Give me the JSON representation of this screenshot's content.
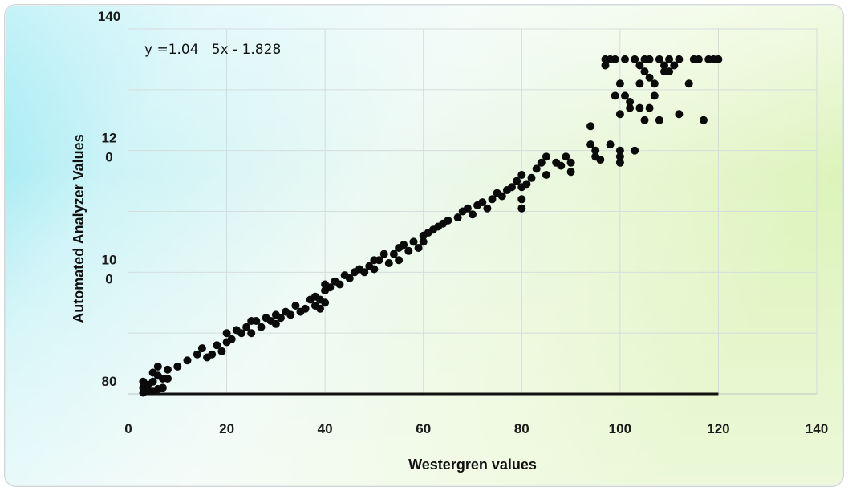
{
  "chart_data": {
    "type": "scatter",
    "xlabel": "Westergren values",
    "ylabel": "Automated Analyzer Values",
    "annotation": "y =1.04   5x - 1.828",
    "x_tick_labels": [
      "0",
      "20",
      "40",
      "60",
      "80",
      "100",
      "120",
      "140"
    ],
    "y_tick_labels": [
      {
        "value": 140,
        "lines": [
          "140"
        ]
      },
      {
        "value": 120,
        "lines": [
          "12",
          "0"
        ]
      },
      {
        "value": 100,
        "lines": [
          "10",
          "0"
        ]
      },
      {
        "value": 80,
        "lines": [
          "80"
        ]
      }
    ],
    "xlim": [
      0,
      140
    ],
    "ylim": [
      80,
      140
    ],
    "grid": true,
    "series": [
      {
        "points": [
          [
            3,
            81
          ],
          [
            4,
            81.5
          ],
          [
            5,
            80.5
          ],
          [
            3,
            82
          ],
          [
            6,
            83
          ],
          [
            5,
            82
          ],
          [
            7,
            82.5
          ],
          [
            4,
            80.5
          ],
          [
            8,
            84
          ],
          [
            6,
            84.5
          ],
          [
            7,
            81
          ],
          [
            3,
            80.2
          ],
          [
            5,
            83.5
          ],
          [
            8,
            82.5
          ],
          [
            6,
            80.8
          ],
          [
            10,
            84.5
          ],
          [
            12,
            85.5
          ],
          [
            14,
            86.5
          ],
          [
            15,
            87.5
          ],
          [
            16,
            86
          ],
          [
            17,
            86.5
          ],
          [
            18,
            88
          ],
          [
            19,
            87
          ],
          [
            20,
            88.5
          ],
          [
            20,
            90
          ],
          [
            21,
            89
          ],
          [
            22,
            90.5
          ],
          [
            23,
            90
          ],
          [
            24,
            91
          ],
          [
            25,
            90
          ],
          [
            25,
            92
          ],
          [
            26,
            92
          ],
          [
            27,
            91
          ],
          [
            28,
            92.5
          ],
          [
            29,
            92
          ],
          [
            30,
            93
          ],
          [
            30,
            91.5
          ],
          [
            31,
            92.5
          ],
          [
            32,
            93.5
          ],
          [
            33,
            93
          ],
          [
            34,
            94.5
          ],
          [
            35,
            93.5
          ],
          [
            36,
            94
          ],
          [
            37,
            95.5
          ],
          [
            38,
            96
          ],
          [
            38,
            94.5
          ],
          [
            39,
            95.5
          ],
          [
            39,
            94
          ],
          [
            40,
            95
          ],
          [
            40,
            97
          ],
          [
            40,
            98
          ],
          [
            41,
            97.5
          ],
          [
            42,
            98.5
          ],
          [
            43,
            98
          ],
          [
            44,
            99.5
          ],
          [
            45,
            99
          ],
          [
            46,
            100
          ],
          [
            47,
            100.5
          ],
          [
            48,
            100
          ],
          [
            49,
            101
          ],
          [
            50,
            102
          ],
          [
            50,
            100.5
          ],
          [
            51,
            102
          ],
          [
            52,
            103
          ],
          [
            53,
            101.5
          ],
          [
            54,
            103
          ],
          [
            55,
            104
          ],
          [
            55,
            102
          ],
          [
            56,
            104.5
          ],
          [
            57,
            103.5
          ],
          [
            58,
            105
          ],
          [
            59,
            104
          ],
          [
            60,
            106
          ],
          [
            60,
            105
          ],
          [
            61,
            106.5
          ],
          [
            62,
            107
          ],
          [
            63,
            107.5
          ],
          [
            64,
            108
          ],
          [
            65,
            108.5
          ],
          [
            67,
            109
          ],
          [
            68,
            110
          ],
          [
            69,
            110.5
          ],
          [
            70,
            109.5
          ],
          [
            71,
            111
          ],
          [
            72,
            111.5
          ],
          [
            73,
            110.5
          ],
          [
            74,
            112
          ],
          [
            75,
            113
          ],
          [
            76,
            112.5
          ],
          [
            77,
            113.5
          ],
          [
            78,
            114
          ],
          [
            79,
            115
          ],
          [
            80,
            114
          ],
          [
            80,
            112
          ],
          [
            80,
            110.5
          ],
          [
            80,
            116
          ],
          [
            81,
            114.5
          ],
          [
            82,
            115.5
          ],
          [
            83,
            117
          ],
          [
            84,
            118
          ],
          [
            85,
            119
          ],
          [
            85,
            116
          ],
          [
            87,
            118
          ],
          [
            88,
            117.5
          ],
          [
            89,
            119
          ],
          [
            90,
            116.5
          ],
          [
            90,
            118
          ],
          [
            94,
            121
          ],
          [
            94,
            124
          ],
          [
            95,
            120
          ],
          [
            95,
            119
          ],
          [
            96,
            118.5
          ],
          [
            97,
            134
          ],
          [
            98,
            135
          ],
          [
            98,
            121
          ],
          [
            99,
            129
          ],
          [
            100,
            120
          ],
          [
            100,
            118
          ],
          [
            100,
            119
          ],
          [
            100,
            126
          ],
          [
            100,
            131
          ],
          [
            101,
            129
          ],
          [
            102,
            128
          ],
          [
            102,
            127
          ],
          [
            103,
            120
          ],
          [
            104,
            127
          ],
          [
            104,
            131
          ],
          [
            105,
            133
          ],
          [
            105,
            135
          ],
          [
            105,
            125
          ],
          [
            106,
            127
          ],
          [
            107,
            129
          ],
          [
            108,
            125
          ],
          [
            109,
            133
          ],
          [
            110,
            135
          ],
          [
            110,
            133
          ],
          [
            112,
            126
          ],
          [
            114,
            131
          ],
          [
            116,
            135
          ],
          [
            117,
            125
          ],
          [
            120,
            135
          ],
          [
            97,
            135
          ],
          [
            99,
            135
          ],
          [
            101,
            135
          ],
          [
            103,
            135
          ],
          [
            106,
            135
          ],
          [
            108,
            135
          ],
          [
            112,
            135
          ],
          [
            115,
            135
          ],
          [
            118,
            135
          ],
          [
            119,
            135
          ],
          [
            104,
            134
          ],
          [
            106,
            132
          ],
          [
            107,
            131
          ],
          [
            109,
            134
          ],
          [
            111,
            134
          ]
        ]
      }
    ]
  }
}
